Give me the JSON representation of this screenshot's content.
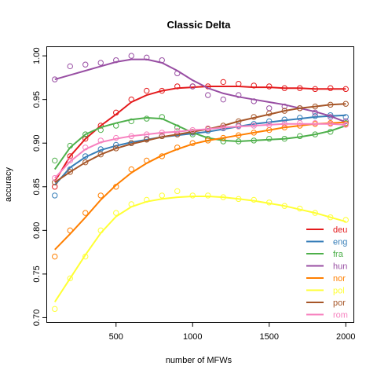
{
  "chart_data": {
    "type": "scatter",
    "title": "Classic Delta",
    "xlabel": "number of MFWs",
    "ylabel": "accuracy",
    "xlim": [
      50,
      2050
    ],
    "ylim": [
      0.695,
      1.01
    ],
    "xticks": [
      500,
      1000,
      1500,
      2000
    ],
    "yticks": [
      0.7,
      0.75,
      0.8,
      0.85,
      0.9,
      0.95,
      1.0
    ],
    "grid": false,
    "legend_position": "bottom-right",
    "x": [
      100,
      200,
      300,
      400,
      500,
      600,
      700,
      800,
      900,
      1000,
      1100,
      1200,
      1300,
      1400,
      1500,
      1600,
      1700,
      1800,
      1900,
      2000
    ],
    "series": [
      {
        "name": "deu",
        "color": "#e41a1c",
        "points": [
          0.85,
          0.885,
          0.905,
          0.92,
          0.935,
          0.95,
          0.96,
          0.96,
          0.965,
          0.965,
          0.965,
          0.97,
          0.968,
          0.966,
          0.965,
          0.963,
          0.963,
          0.962,
          0.963,
          0.962
        ],
        "smooth": [
          0.856,
          0.885,
          0.905,
          0.92,
          0.933,
          0.947,
          0.955,
          0.96,
          0.963,
          0.964,
          0.965,
          0.965,
          0.965,
          0.964,
          0.964,
          0.963,
          0.963,
          0.962,
          0.962,
          0.962
        ]
      },
      {
        "name": "eng",
        "color": "#377eb8",
        "points": [
          0.84,
          0.87,
          0.885,
          0.893,
          0.898,
          0.9,
          0.905,
          0.908,
          0.91,
          0.912,
          0.914,
          0.917,
          0.92,
          0.922,
          0.925,
          0.927,
          0.929,
          0.931,
          0.932,
          0.93
        ],
        "smooth": [
          0.852,
          0.872,
          0.884,
          0.892,
          0.897,
          0.901,
          0.904,
          0.907,
          0.909,
          0.911,
          0.913,
          0.916,
          0.919,
          0.922,
          0.924,
          0.926,
          0.928,
          0.93,
          0.931,
          0.932
        ]
      },
      {
        "name": "fra",
        "color": "#4daf4a",
        "points": [
          0.88,
          0.897,
          0.91,
          0.915,
          0.92,
          0.925,
          0.928,
          0.93,
          0.918,
          0.91,
          0.905,
          0.902,
          0.902,
          0.903,
          0.905,
          0.905,
          0.908,
          0.91,
          0.913,
          0.923
        ],
        "smooth": [
          0.87,
          0.895,
          0.91,
          0.918,
          0.923,
          0.927,
          0.929,
          0.928,
          0.92,
          0.912,
          0.906,
          0.903,
          0.902,
          0.903,
          0.904,
          0.905,
          0.907,
          0.91,
          0.914,
          0.92
        ]
      },
      {
        "name": "hun",
        "color": "#984ea3",
        "points": [
          0.973,
          0.988,
          0.99,
          0.992,
          0.995,
          1.0,
          0.998,
          0.995,
          0.98,
          0.965,
          0.955,
          0.95,
          0.955,
          0.948,
          0.94,
          0.942,
          0.94,
          0.935,
          0.93,
          0.925
        ],
        "smooth": [
          0.973,
          0.978,
          0.983,
          0.988,
          0.993,
          0.996,
          0.996,
          0.992,
          0.983,
          0.972,
          0.963,
          0.957,
          0.953,
          0.95,
          0.947,
          0.944,
          0.94,
          0.936,
          0.931,
          0.924
        ]
      },
      {
        "name": "nor",
        "color": "#ff7f00",
        "points": [
          0.77,
          0.8,
          0.82,
          0.84,
          0.85,
          0.87,
          0.88,
          0.885,
          0.895,
          0.9,
          0.903,
          0.906,
          0.909,
          0.912,
          0.915,
          0.918,
          0.92,
          0.922,
          0.923,
          0.922
        ],
        "smooth": [
          0.778,
          0.796,
          0.815,
          0.835,
          0.852,
          0.866,
          0.877,
          0.886,
          0.893,
          0.899,
          0.903,
          0.906,
          0.909,
          0.912,
          0.915,
          0.918,
          0.92,
          0.922,
          0.923,
          0.924
        ]
      },
      {
        "name": "pol",
        "color": "#ffff33",
        "points": [
          0.71,
          0.745,
          0.77,
          0.8,
          0.82,
          0.83,
          0.835,
          0.84,
          0.845,
          0.84,
          0.84,
          0.838,
          0.836,
          0.835,
          0.832,
          0.828,
          0.825,
          0.82,
          0.815,
          0.812
        ],
        "smooth": [
          0.718,
          0.745,
          0.772,
          0.797,
          0.816,
          0.827,
          0.833,
          0.836,
          0.838,
          0.839,
          0.839,
          0.838,
          0.836,
          0.834,
          0.831,
          0.828,
          0.824,
          0.82,
          0.815,
          0.81
        ]
      },
      {
        "name": "por",
        "color": "#a65628",
        "points": [
          0.855,
          0.867,
          0.878,
          0.887,
          0.894,
          0.9,
          0.904,
          0.908,
          0.91,
          0.913,
          0.916,
          0.92,
          0.925,
          0.93,
          0.934,
          0.937,
          0.94,
          0.942,
          0.944,
          0.945
        ],
        "smooth": [
          0.855,
          0.867,
          0.878,
          0.887,
          0.894,
          0.899,
          0.903,
          0.907,
          0.91,
          0.913,
          0.916,
          0.92,
          0.925,
          0.929,
          0.933,
          0.937,
          0.94,
          0.942,
          0.944,
          0.945
        ]
      },
      {
        "name": "rom",
        "color": "#f781bf",
        "points": [
          0.86,
          0.88,
          0.895,
          0.903,
          0.906,
          0.908,
          0.91,
          0.912,
          0.914,
          0.915,
          0.917,
          0.918,
          0.919,
          0.92,
          0.921,
          0.922,
          0.923,
          0.923,
          0.922,
          0.921
        ],
        "smooth": [
          0.86,
          0.879,
          0.893,
          0.901,
          0.905,
          0.908,
          0.91,
          0.912,
          0.913,
          0.915,
          0.916,
          0.918,
          0.919,
          0.92,
          0.921,
          0.922,
          0.922,
          0.922,
          0.922,
          0.921
        ]
      }
    ]
  }
}
